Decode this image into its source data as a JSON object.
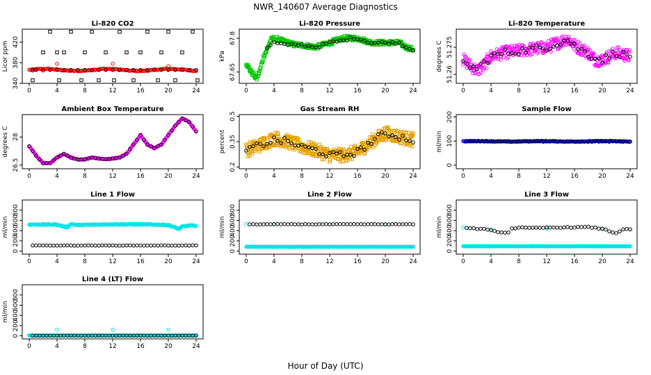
{
  "figure": {
    "title": "NWR_140607  Average Diagnostics",
    "xlabel": "Hour of Day (UTC)"
  },
  "chart_data": [
    {
      "type": "scatter",
      "title": "Li-820 CO2",
      "ylabel": "Licor ppm",
      "xlim": [
        -1,
        25
      ],
      "ylim": [
        340,
        445
      ],
      "yticks": [
        340,
        380,
        420
      ],
      "series": [
        {
          "color": "#ff0000",
          "marker": "o",
          "gen": "band",
          "center": 366,
          "amp": 2,
          "jit": 1,
          "x0": 0,
          "x1": 24,
          "step": 0.15,
          "extra": [
            [
              4,
              378
            ],
            [
              12,
              378
            ],
            [
              20,
              373
            ]
          ]
        },
        {
          "color": "#000000",
          "marker": "o",
          "gen": "list",
          "x": [
            0.5,
            1,
            2,
            3,
            4,
            5,
            6,
            7,
            8,
            9,
            10,
            11,
            12,
            13,
            14,
            15,
            16,
            17,
            18,
            19,
            20,
            21,
            22,
            23,
            24
          ],
          "y": [
            365,
            366,
            365,
            366,
            366,
            366,
            366,
            366,
            366,
            366,
            366,
            366,
            366,
            366,
            366,
            366,
            366,
            366,
            366,
            366,
            366,
            366,
            366,
            366,
            366
          ]
        },
        {
          "color": "#000000",
          "marker": "s",
          "gen": "list",
          "x": [
            0.5,
            2,
            3,
            4,
            4.3,
            5,
            6,
            7.5,
            8,
            9,
            10,
            11,
            12.2,
            13,
            14,
            15,
            16,
            17,
            18.5,
            19,
            20,
            21,
            22,
            23.5,
            24.2
          ],
          "y": [
            346,
            400,
            440,
            400,
            346,
            400,
            440,
            346,
            400,
            440,
            346,
            400,
            346,
            440,
            400,
            346,
            400,
            440,
            346,
            400,
            440,
            346,
            400,
            440,
            346
          ]
        }
      ]
    },
    {
      "type": "scatter",
      "title": "Li-820 Pressure",
      "ylabel": "kPa",
      "xlim": [
        -1,
        25
      ],
      "ylim": [
        67.6,
        67.84
      ],
      "yticks": [
        67.65,
        67.8
      ],
      "series": [
        {
          "color": "#00c800",
          "marker": "s",
          "gen": "curve",
          "kx": [
            0,
            0.5,
            1,
            1.5,
            2,
            2.5,
            3,
            3.5,
            4,
            5,
            6,
            7,
            8,
            10,
            12,
            14,
            15,
            16,
            17,
            18,
            20,
            22,
            23,
            24
          ],
          "ky": [
            67.69,
            67.66,
            67.64,
            67.62,
            67.66,
            67.72,
            67.75,
            67.79,
            67.8,
            67.79,
            67.78,
            67.77,
            67.77,
            67.76,
            67.78,
            67.8,
            67.8,
            67.8,
            67.79,
            67.78,
            67.78,
            67.78,
            67.76,
            67.75
          ],
          "jit": 0.01,
          "step": 0.08
        },
        {
          "color": "#000000",
          "marker": "o",
          "gen": "curve",
          "kx": [
            3,
            4,
            6,
            8,
            10,
            12,
            14,
            15,
            16,
            17,
            18,
            20,
            22,
            23,
            24
          ],
          "ky": [
            67.76,
            67.78,
            67.77,
            67.77,
            67.76,
            67.78,
            67.79,
            67.8,
            67.8,
            67.79,
            67.78,
            67.78,
            67.78,
            67.76,
            67.75
          ],
          "jit": 0.005,
          "step": 0.5
        }
      ]
    },
    {
      "type": "scatter",
      "title": "Li-820 Temperature",
      "ylabel": "degrees C",
      "xlim": [
        -1,
        25
      ],
      "ylim": [
        51.255,
        51.285
      ],
      "yticks": [
        51.26,
        51.275
      ],
      "series": [
        {
          "color": "#ff00ff",
          "marker": "o",
          "gen": "curve",
          "kx": [
            0,
            2,
            3,
            4,
            6,
            8,
            10,
            12,
            14,
            15,
            16,
            18,
            19,
            20,
            22,
            24
          ],
          "ky": [
            51.268,
            51.262,
            51.265,
            51.27,
            51.272,
            51.273,
            51.274,
            51.275,
            51.278,
            51.28,
            51.276,
            51.272,
            51.268,
            51.268,
            51.272,
            51.27
          ],
          "jit": 0.0035,
          "step": 0.07
        },
        {
          "color": "#000000",
          "marker": "o",
          "gen": "curve",
          "kx": [
            0,
            2,
            4,
            6,
            8,
            10,
            12,
            14,
            15,
            16,
            18,
            20,
            22,
            24
          ],
          "ky": [
            51.266,
            51.263,
            51.27,
            51.272,
            51.273,
            51.274,
            51.275,
            51.278,
            51.279,
            51.276,
            51.271,
            51.268,
            51.272,
            51.27
          ],
          "jit": 0.002,
          "step": 0.5
        }
      ]
    },
    {
      "type": "scatter",
      "title": "Ambient Box Temperature",
      "ylabel": "degrees C",
      "xlim": [
        -1,
        25
      ],
      "ylim": [
        26.3,
        29.2
      ],
      "yticks": [
        26.5,
        28.0
      ],
      "series": [
        {
          "color": "#ff00ff",
          "marker": "o",
          "gen": "curve",
          "kx": [
            0,
            1,
            2,
            3,
            4,
            5,
            6,
            7,
            8,
            9,
            10,
            11,
            12,
            13,
            14,
            15,
            16,
            17,
            18,
            19,
            20,
            21,
            22,
            23,
            24
          ],
          "ky": [
            27.5,
            27.0,
            26.6,
            26.6,
            26.9,
            27.1,
            26.9,
            26.8,
            26.8,
            26.9,
            26.85,
            26.8,
            26.85,
            26.9,
            27.1,
            27.6,
            28.1,
            27.6,
            27.4,
            27.6,
            28.1,
            28.6,
            29.0,
            28.8,
            28.3
          ],
          "jit": 0.02,
          "step": 0.1
        },
        {
          "color": "#000000",
          "marker": "o",
          "gen": "curve",
          "kx": [
            0,
            1,
            2,
            3,
            4,
            5,
            6,
            7,
            8,
            9,
            10,
            11,
            12,
            13,
            14,
            15,
            16,
            17,
            18,
            19,
            20,
            21,
            22,
            23,
            24
          ],
          "ky": [
            27.5,
            27.0,
            26.6,
            26.6,
            26.9,
            27.1,
            26.9,
            26.8,
            26.8,
            26.9,
            26.85,
            26.8,
            26.85,
            26.9,
            27.1,
            27.6,
            28.1,
            27.6,
            27.4,
            27.6,
            28.1,
            28.6,
            29.0,
            28.8,
            28.3
          ],
          "jit": 0.01,
          "step": 0.5
        }
      ]
    },
    {
      "type": "scatter",
      "title": "Gas Stream RH",
      "ylabel": "percent",
      "xlim": [
        -1,
        25
      ],
      "ylim": [
        0.19,
        0.51
      ],
      "yticks": [
        0.2,
        0.35,
        0.5
      ],
      "series": [
        {
          "color": "#e6a000",
          "marker": "s",
          "gen": "curve",
          "kx": [
            0,
            2,
            4,
            6,
            8,
            10,
            12,
            14,
            16,
            18,
            20,
            22,
            24
          ],
          "ky": [
            0.3,
            0.33,
            0.37,
            0.35,
            0.32,
            0.3,
            0.27,
            0.27,
            0.29,
            0.35,
            0.4,
            0.38,
            0.36
          ],
          "jit": 0.04,
          "step": 0.06
        },
        {
          "color": "#000000",
          "marker": "o",
          "gen": "curve",
          "kx": [
            0,
            2,
            4,
            6,
            8,
            10,
            12,
            14,
            16,
            18,
            20,
            22,
            24
          ],
          "ky": [
            0.3,
            0.33,
            0.36,
            0.35,
            0.32,
            0.3,
            0.27,
            0.27,
            0.29,
            0.35,
            0.4,
            0.38,
            0.36
          ],
          "jit": 0.02,
          "step": 0.5
        }
      ]
    },
    {
      "type": "scatter",
      "title": "Sample Flow",
      "ylabel": "ml/min",
      "xlim": [
        -1,
        25
      ],
      "ylim": [
        -15,
        210
      ],
      "yticks": [
        0,
        100,
        200
      ],
      "series": [
        {
          "color": "#0000ff",
          "marker": "o",
          "gen": "band",
          "center": 99,
          "amp": 1,
          "jit": 1.5,
          "x0": 0,
          "x1": 24,
          "step": 0.12
        },
        {
          "color": "#000000",
          "marker": "o",
          "gen": "band",
          "center": 98,
          "amp": 0,
          "jit": 1,
          "x0": 0.5,
          "x1": 24,
          "step": 0.5
        }
      ]
    },
    {
      "type": "scatter",
      "title": "Line 1 Flow",
      "ylabel": "ml/min",
      "xlim": [
        -1,
        25
      ],
      "ylim": [
        -60,
        1000
      ],
      "yticks": [
        0,
        200,
        400,
        600,
        800
      ],
      "series": [
        {
          "color": "#00e5e5",
          "marker": "o",
          "gen": "curve",
          "kx": [
            0,
            4,
            5,
            5.5,
            6,
            7,
            12,
            18,
            20,
            21,
            21.5,
            22,
            23,
            24
          ],
          "ky": [
            520,
            520,
            480,
            470,
            530,
            510,
            525,
            520,
            510,
            460,
            430,
            480,
            500,
            495
          ],
          "jit": 10,
          "step": 0.1
        },
        {
          "color": "#000000",
          "marker": "o",
          "gen": "band",
          "center": 110,
          "amp": 0,
          "jit": 3,
          "x0": 0.5,
          "x1": 24,
          "step": 0.5
        }
      ]
    },
    {
      "type": "scatter",
      "title": "Line 2 Flow",
      "ylabel": "ml/min",
      "xlim": [
        -1,
        25
      ],
      "ylim": [
        -60,
        1000
      ],
      "yticks": [
        0,
        200,
        400,
        600,
        800
      ],
      "series": [
        {
          "color": "#00e5e5",
          "marker": "o",
          "gen": "band",
          "center": 85,
          "amp": 0,
          "jit": 3,
          "x0": 0,
          "x1": 24,
          "step": 0.1,
          "extra": [
            [
              0,
              530
            ],
            [
              4,
              520
            ],
            [
              12,
              520
            ],
            [
              20,
              520
            ]
          ]
        },
        {
          "color": "#000000",
          "marker": "o",
          "gen": "band",
          "center": 525,
          "amp": 0,
          "jit": 4,
          "x0": 0.5,
          "x1": 24,
          "step": 0.5
        }
      ]
    },
    {
      "type": "scatter",
      "title": "Line 3 Flow",
      "ylabel": "ml/min",
      "xlim": [
        -1,
        25
      ],
      "ylim": [
        -60,
        1000
      ],
      "yticks": [
        0,
        200,
        400,
        600,
        800
      ],
      "series": [
        {
          "color": "#00e5e5",
          "marker": "o",
          "gen": "band",
          "center": 95,
          "amp": 0,
          "jit": 3,
          "x0": 0,
          "x1": 24,
          "step": 0.1,
          "extra": [
            [
              0,
              460
            ],
            [
              4,
              430
            ],
            [
              12,
              440
            ],
            [
              20,
              430
            ]
          ]
        },
        {
          "color": "#000000",
          "marker": "o",
          "gen": "curve",
          "kx": [
            0.5,
            3,
            4,
            5,
            6,
            6.5,
            7,
            8,
            10,
            12,
            18,
            20,
            21,
            22,
            23,
            24
          ],
          "ky": [
            450,
            430,
            400,
            380,
            360,
            370,
            440,
            460,
            450,
            460,
            470,
            440,
            390,
            350,
            430,
            420
          ],
          "jit": 8,
          "step": 0.5
        }
      ]
    },
    {
      "type": "scatter",
      "title": "Line 4 (LT) Flow",
      "ylabel": "ml/min",
      "xlim": [
        -1,
        25
      ],
      "ylim": [
        -60,
        1000
      ],
      "yticks": [
        0,
        200,
        400,
        600,
        800
      ],
      "series": [
        {
          "color": "#00e5e5",
          "marker": "o",
          "gen": "band",
          "center": 5,
          "amp": 0,
          "jit": 2,
          "x0": 0,
          "x1": 24,
          "step": 0.1,
          "extra": [
            [
              0,
              10
            ],
            [
              4,
              120
            ],
            [
              12,
              120
            ],
            [
              20,
              120
            ]
          ]
        },
        {
          "color": "#000000",
          "marker": "o",
          "gen": "band",
          "center": 5,
          "amp": 0,
          "jit": 1,
          "x0": 0.5,
          "x1": 24,
          "step": 0.5
        }
      ]
    }
  ],
  "shared": {
    "xticks": [
      0,
      4,
      8,
      12,
      16,
      20,
      24
    ]
  }
}
